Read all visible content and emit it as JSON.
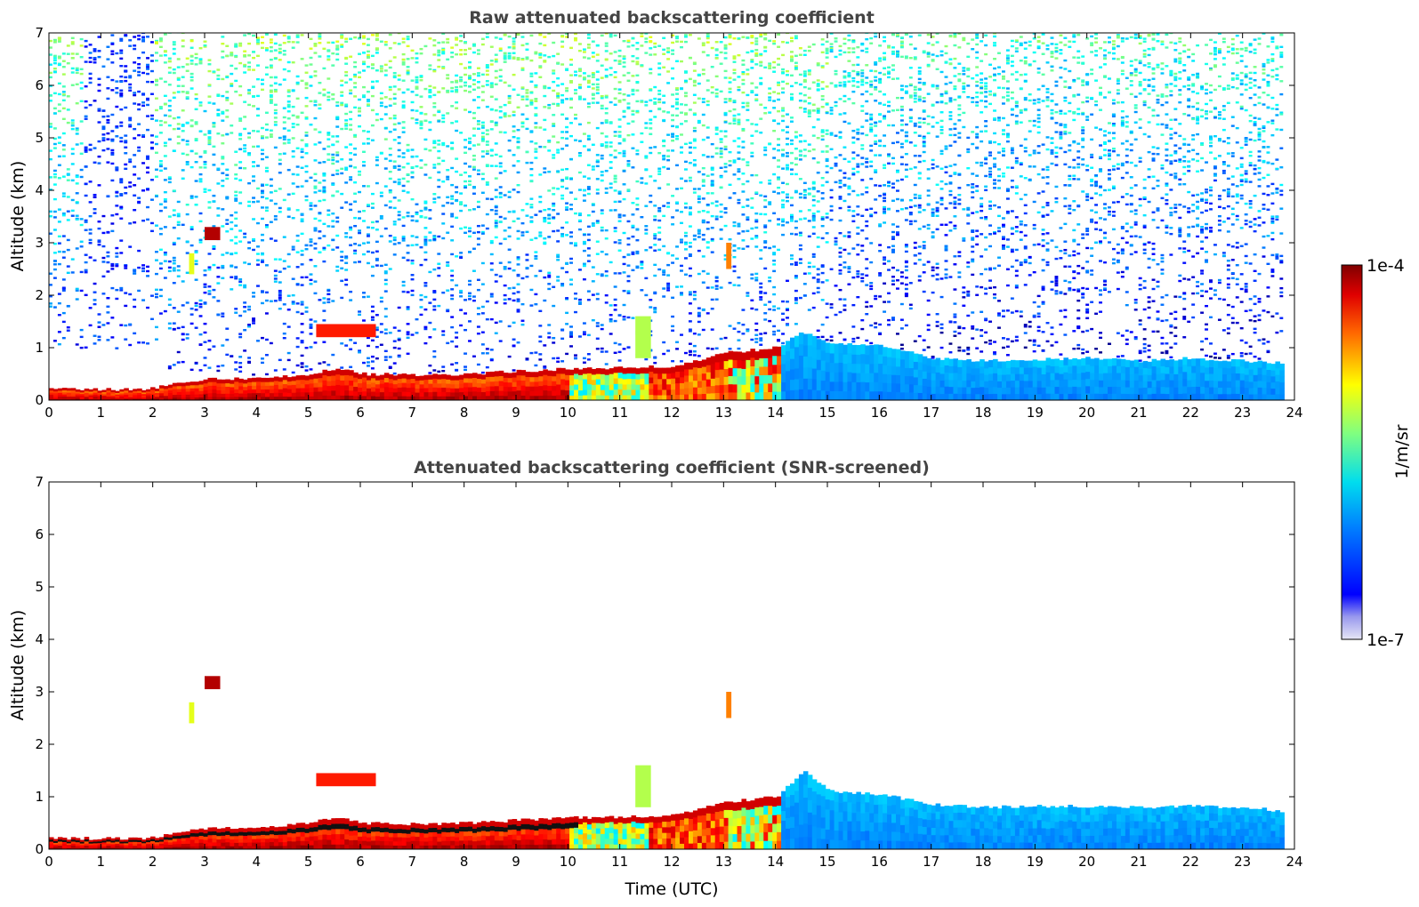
{
  "chart_data": [
    {
      "type": "heatmap",
      "title": "Raw attenuated backscattering coefficient",
      "xlabel": "",
      "ylabel": "Altitude (km)",
      "xlim": [
        0,
        24
      ],
      "ylim": [
        0,
        7
      ],
      "xticks": [
        "0",
        "1",
        "2",
        "3",
        "4",
        "5",
        "6",
        "7",
        "8",
        "9",
        "10",
        "11",
        "12",
        "13",
        "14",
        "15",
        "16",
        "17",
        "18",
        "19",
        "20",
        "21",
        "22",
        "23",
        "24"
      ],
      "yticks": [
        "0",
        "1",
        "2",
        "3",
        "4",
        "5",
        "6",
        "7"
      ],
      "screened": false,
      "boundary_layer": {
        "time_utc": [
          0,
          1,
          2,
          2.5,
          3,
          4,
          5,
          5.5,
          6,
          7,
          8,
          9,
          10,
          11,
          12,
          13,
          14,
          14.5,
          15,
          16,
          17,
          18,
          19,
          20,
          21,
          22,
          23,
          23.8
        ],
        "top_km": [
          0.22,
          0.2,
          0.22,
          0.35,
          0.4,
          0.42,
          0.5,
          0.6,
          0.5,
          0.48,
          0.5,
          0.55,
          0.6,
          0.62,
          0.65,
          0.9,
          1.0,
          1.3,
          1.1,
          1.05,
          0.8,
          0.75,
          0.78,
          0.8,
          0.75,
          0.8,
          0.75,
          0.7
        ]
      }
    },
    {
      "type": "heatmap",
      "title": "Attenuated backscattering coefficient (SNR-screened)",
      "xlabel": "Time (UTC)",
      "ylabel": "Altitude (km)",
      "xlim": [
        0,
        24
      ],
      "ylim": [
        0,
        7
      ],
      "xticks": [
        "0",
        "1",
        "2",
        "3",
        "4",
        "5",
        "6",
        "7",
        "8",
        "9",
        "10",
        "11",
        "12",
        "13",
        "14",
        "15",
        "16",
        "17",
        "18",
        "19",
        "20",
        "21",
        "22",
        "23",
        "24"
      ],
      "yticks": [
        "0",
        "1",
        "2",
        "3",
        "4",
        "5",
        "6",
        "7"
      ],
      "screened": true,
      "boundary_layer": {
        "time_utc": [
          0,
          1,
          2,
          2.5,
          3,
          4,
          5,
          5.5,
          6,
          7,
          8,
          9,
          10,
          11,
          12,
          13,
          14,
          14.5,
          15,
          16,
          17,
          18,
          19,
          20,
          21,
          22,
          23,
          23.8
        ],
        "top_km": [
          0.22,
          0.2,
          0.22,
          0.35,
          0.4,
          0.42,
          0.5,
          0.6,
          0.5,
          0.48,
          0.5,
          0.55,
          0.6,
          0.62,
          0.65,
          0.9,
          1.0,
          1.5,
          1.1,
          1.05,
          0.85,
          0.8,
          0.82,
          0.82,
          0.8,
          0.82,
          0.8,
          0.72
        ]
      }
    }
  ],
  "colorbar": {
    "label": "1/m/sr",
    "max_label": "1e-4",
    "min_label": "1e-7",
    "colormap": "jet",
    "low_color": "#e6e6f5"
  }
}
